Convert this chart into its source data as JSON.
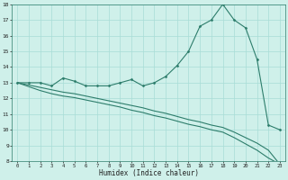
{
  "xlabel": "Humidex (Indice chaleur)",
  "line_color": "#2d7d6b",
  "bg_color": "#cff0ea",
  "grid_color": "#a8ddd6",
  "ylim": [
    8,
    18
  ],
  "xlim": [
    -0.5,
    23.5
  ],
  "yticks": [
    8,
    9,
    10,
    11,
    12,
    13,
    14,
    15,
    16,
    17,
    18
  ],
  "xticks": [
    0,
    1,
    2,
    3,
    4,
    5,
    6,
    7,
    8,
    9,
    10,
    11,
    12,
    13,
    14,
    15,
    16,
    17,
    18,
    19,
    20,
    21,
    22,
    23
  ],
  "x_peak": [
    0,
    1,
    2,
    3,
    4,
    5,
    6,
    7,
    8,
    9,
    10,
    11,
    12,
    13,
    14,
    15,
    16,
    17,
    18,
    19,
    20,
    21,
    22,
    23
  ],
  "y_peak": [
    13,
    13,
    13,
    12.8,
    13.3,
    13.1,
    12.8,
    12.8,
    12.8,
    13.0,
    13.2,
    12.8,
    13.0,
    13.4,
    14.1,
    15.0,
    16.6,
    17.0,
    18.0,
    17.0,
    16.5,
    14.5,
    10.3,
    10.0
  ],
  "y_low1": [
    13,
    12.85,
    12.7,
    12.55,
    12.4,
    12.3,
    12.15,
    12.0,
    11.85,
    11.7,
    11.55,
    11.4,
    11.2,
    11.05,
    10.85,
    10.65,
    10.5,
    10.3,
    10.15,
    9.85,
    9.5,
    9.15,
    8.7,
    7.8
  ],
  "y_low2": [
    13,
    12.75,
    12.5,
    12.3,
    12.15,
    12.05,
    11.9,
    11.75,
    11.6,
    11.45,
    11.25,
    11.1,
    10.9,
    10.75,
    10.55,
    10.35,
    10.2,
    10.0,
    9.85,
    9.5,
    9.1,
    8.7,
    8.2,
    7.8
  ]
}
